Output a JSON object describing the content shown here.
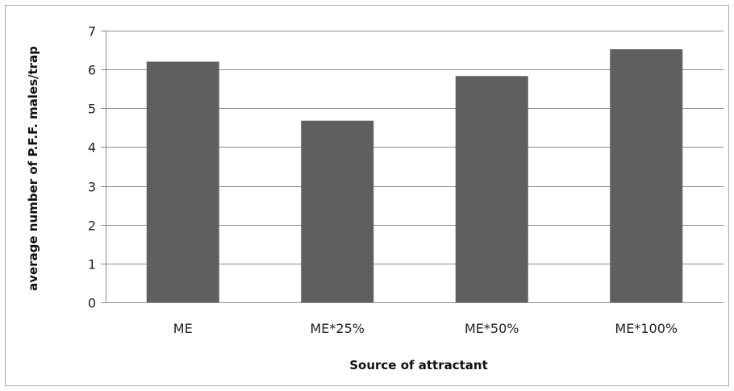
{
  "chart_data": {
    "type": "bar",
    "title": "",
    "xlabel": "Source of attractant",
    "ylabel": "average number of P.F.F. males/trap",
    "categories": [
      "ME",
      "ME*25%",
      "ME*50%",
      "ME*100%"
    ],
    "values": [
      6.2,
      4.68,
      5.83,
      6.52
    ],
    "ylim": [
      0,
      7
    ],
    "yticks": [
      "0",
      "1",
      "2",
      "3",
      "4",
      "5",
      "6",
      "7"
    ],
    "grid": "horizontal",
    "legend": "none",
    "colors": {
      "bar": "#5f5f5f",
      "grid": "#8c8c8c",
      "axis": "#8c8c8c",
      "frame": "#a6a6a6"
    }
  }
}
